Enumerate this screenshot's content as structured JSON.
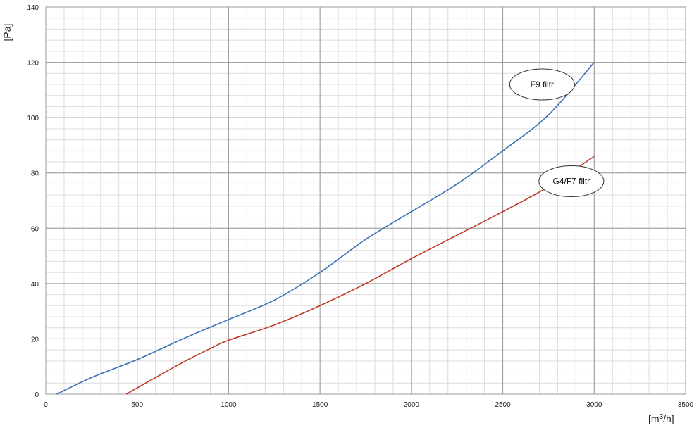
{
  "chart_data": {
    "type": "line",
    "xlabel_prefix": "[m",
    "xlabel_sup": "3",
    "xlabel_suffix": "/h]",
    "ylabel": "[Pa]",
    "xlim": [
      0,
      3500
    ],
    "ylim": [
      0,
      140
    ],
    "x_ticks": [
      "0",
      "500",
      "1000",
      "1500",
      "2000",
      "2500",
      "3000",
      "3500"
    ],
    "y_ticks": [
      "0",
      "20",
      "40",
      "60",
      "80",
      "100",
      "120",
      "140"
    ],
    "grid": true,
    "minor_grid_x": 100,
    "minor_grid_y": 4,
    "series": [
      {
        "name": "F9 filtr",
        "color": "#3a6fb8",
        "x": [
          60,
          250,
          500,
          750,
          1000,
          1250,
          1500,
          1750,
          2000,
          2250,
          2500,
          2750,
          3000
        ],
        "y": [
          0,
          6,
          12.5,
          20,
          27,
          34,
          44,
          56,
          66,
          76,
          88,
          101,
          120
        ]
      },
      {
        "name": "G4/F7 filtr",
        "color": "#c0392b",
        "x": [
          440,
          600,
          750,
          900,
          1000,
          1250,
          1500,
          1750,
          2000,
          2250,
          2500,
          2750,
          3000
        ],
        "y": [
          0,
          6,
          11.5,
          16.5,
          19.5,
          25,
          32,
          40,
          49,
          57.5,
          66,
          75,
          86
        ]
      }
    ],
    "callouts": [
      {
        "text": "F9 filtr",
        "x": 2715,
        "y": 112
      },
      {
        "text": "G4/F7 filtr",
        "x": 2875,
        "y": 77
      }
    ]
  }
}
